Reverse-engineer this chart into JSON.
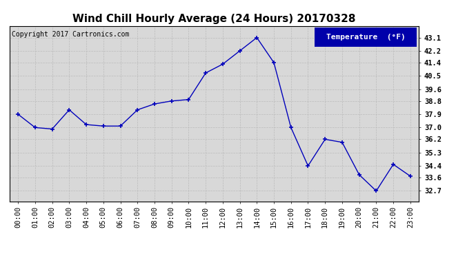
{
  "title": "Wind Chill Hourly Average (24 Hours) 20170328",
  "copyright_text": "Copyright 2017 Cartronics.com",
  "legend_label": "Temperature  (°F)",
  "hours": [
    "00:00",
    "01:00",
    "02:00",
    "03:00",
    "04:00",
    "05:00",
    "06:00",
    "07:00",
    "08:00",
    "09:00",
    "10:00",
    "11:00",
    "12:00",
    "13:00",
    "14:00",
    "15:00",
    "16:00",
    "17:00",
    "18:00",
    "19:00",
    "20:00",
    "21:00",
    "22:00",
    "23:00"
  ],
  "values": [
    37.9,
    37.0,
    36.9,
    38.2,
    37.2,
    37.1,
    37.1,
    38.2,
    38.6,
    38.8,
    38.9,
    40.7,
    41.3,
    42.2,
    43.1,
    41.4,
    37.0,
    34.4,
    36.2,
    36.0,
    33.8,
    32.7,
    34.5,
    33.7
  ],
  "ylim": [
    32.0,
    43.9
  ],
  "yticks": [
    32.7,
    33.6,
    34.4,
    35.3,
    36.2,
    37.0,
    37.9,
    38.8,
    39.6,
    40.5,
    41.4,
    42.2,
    43.1
  ],
  "line_color": "#0000bb",
  "marker": "+",
  "marker_size": 5,
  "bg_color": "#ffffff",
  "plot_bg_color": "#d8d8d8",
  "grid_color": "#bbbbbb",
  "title_fontsize": 11,
  "axis_fontsize": 7.5,
  "copyright_fontsize": 7,
  "legend_bg": "#0000aa",
  "legend_text_color": "#ffffff",
  "legend_fontsize": 8
}
